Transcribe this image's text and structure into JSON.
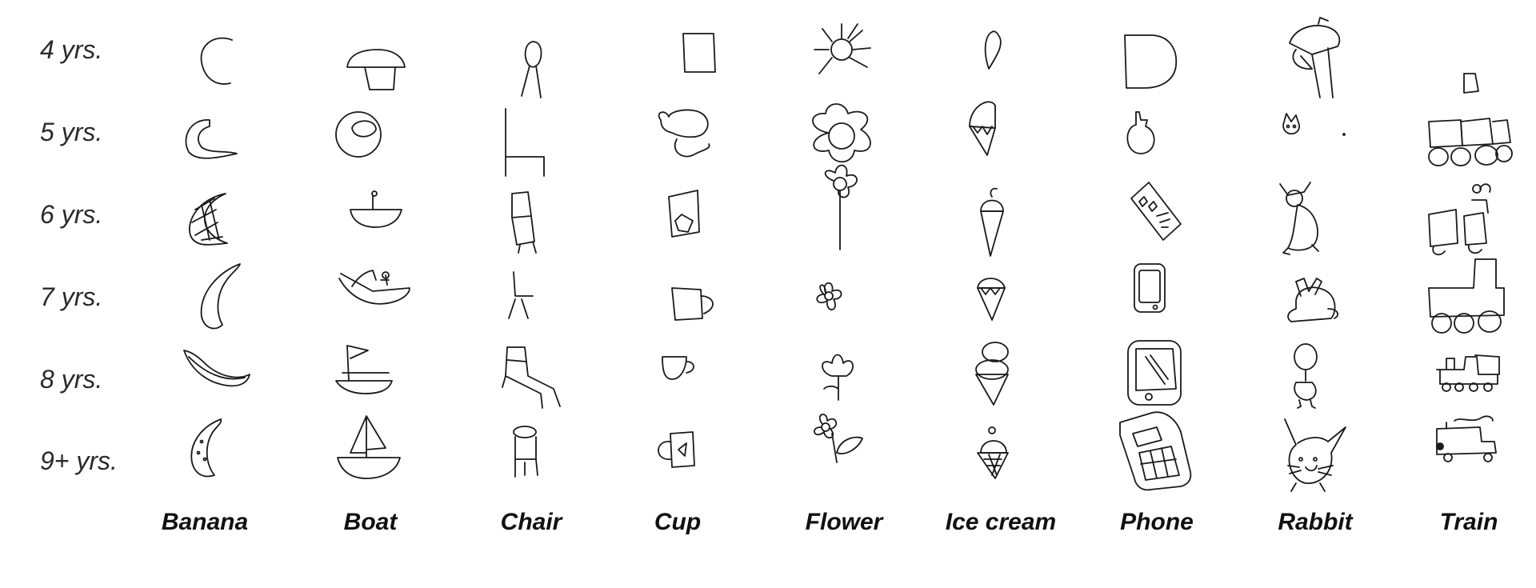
{
  "ages": [
    "4 yrs.",
    "5 yrs.",
    "6 yrs.",
    "7 yrs.",
    "8 yrs.",
    "9+ yrs."
  ],
  "categories": [
    "Banana",
    "Boat",
    "Chair",
    "Cup",
    "Flower",
    "Ice cream",
    "Phone",
    "Rabbit",
    "Train"
  ]
}
